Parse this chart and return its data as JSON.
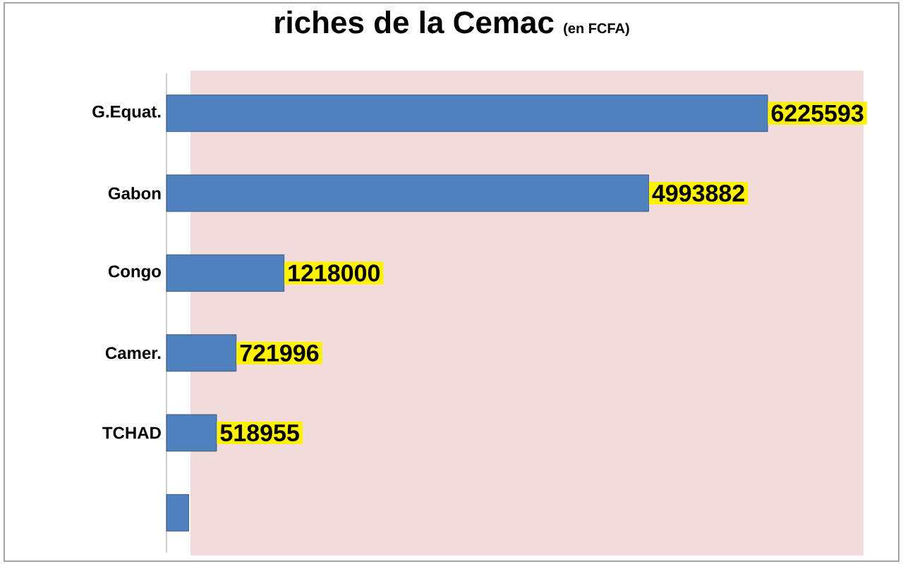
{
  "chart_data": {
    "type": "bar",
    "orientation": "horizontal",
    "title": "riches de la Cemac",
    "subtitle": "(en FCFA)",
    "categories": [
      "G.Equat.",
      "Gabon",
      "Congo",
      "Camer.",
      "TCHAD",
      null
    ],
    "values": [
      6225593,
      4993882,
      1218000,
      721996,
      518955,
      230000
    ],
    "color": "#4f81bd",
    "value_labels": [
      "6225593",
      "4993882",
      "1218000",
      "721996",
      "518955",
      null
    ]
  }
}
